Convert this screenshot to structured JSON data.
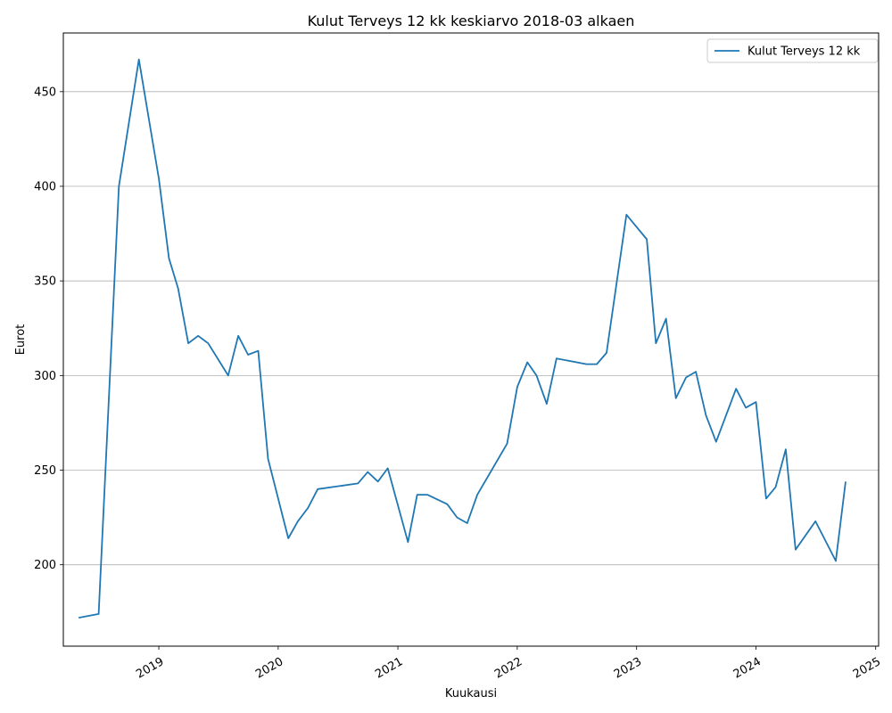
{
  "chart_data": {
    "type": "line",
    "title": "Kulut Terveys 12 kk keskiarvo 2018-03 alkaen",
    "xlabel": "Kuukausi",
    "ylabel": "Eurot",
    "legend_position": "top-right",
    "grid": "horizontal",
    "line_color": "#1f77b4",
    "x_tick_labels": [
      "2019",
      "2020",
      "2021",
      "2022",
      "2023",
      "2024",
      "2025"
    ],
    "y_tick_labels": [
      "200",
      "250",
      "300",
      "350",
      "400",
      "450"
    ],
    "x_range": [
      "2018-03-15",
      "2025-01-10"
    ],
    "ylim": [
      157,
      481
    ],
    "series": [
      {
        "name": "Kulut Terveys 12 kk",
        "points": [
          [
            "2018-05-01",
            172
          ],
          [
            "2018-07-01",
            174
          ],
          [
            "2018-09-01",
            400
          ],
          [
            "2018-11-01",
            467
          ],
          [
            "2019-01-01",
            404
          ],
          [
            "2019-02-01",
            362
          ],
          [
            "2019-03-01",
            346
          ],
          [
            "2019-04-01",
            317
          ],
          [
            "2019-05-01",
            321
          ],
          [
            "2019-06-01",
            317
          ],
          [
            "2019-08-01",
            300
          ],
          [
            "2019-09-01",
            321
          ],
          [
            "2019-10-01",
            311
          ],
          [
            "2019-11-01",
            313
          ],
          [
            "2019-12-01",
            256
          ],
          [
            "2020-02-01",
            214
          ],
          [
            "2020-03-01",
            223
          ],
          [
            "2020-04-01",
            230
          ],
          [
            "2020-05-01",
            240
          ],
          [
            "2020-09-01",
            243
          ],
          [
            "2020-10-01",
            249
          ],
          [
            "2020-11-01",
            244
          ],
          [
            "2020-12-01",
            251
          ],
          [
            "2021-02-01",
            212
          ],
          [
            "2021-03-01",
            237
          ],
          [
            "2021-04-01",
            237
          ],
          [
            "2021-06-01",
            232
          ],
          [
            "2021-07-01",
            225
          ],
          [
            "2021-08-01",
            222
          ],
          [
            "2021-09-01",
            237
          ],
          [
            "2021-12-01",
            264
          ],
          [
            "2022-01-01",
            294
          ],
          [
            "2022-02-01",
            307
          ],
          [
            "2022-03-01",
            300
          ],
          [
            "2022-04-01",
            285
          ],
          [
            "2022-05-01",
            309
          ],
          [
            "2022-08-01",
            306
          ],
          [
            "2022-09-01",
            306
          ],
          [
            "2022-10-01",
            312
          ],
          [
            "2022-12-01",
            385
          ],
          [
            "2023-02-01",
            372
          ],
          [
            "2023-03-01",
            317
          ],
          [
            "2023-04-01",
            330
          ],
          [
            "2023-05-01",
            288
          ],
          [
            "2023-06-01",
            299
          ],
          [
            "2023-07-01",
            302
          ],
          [
            "2023-08-01",
            279
          ],
          [
            "2023-09-01",
            265
          ],
          [
            "2023-11-01",
            293
          ],
          [
            "2023-12-01",
            283
          ],
          [
            "2024-01-01",
            286
          ],
          [
            "2024-02-01",
            235
          ],
          [
            "2024-03-01",
            241
          ],
          [
            "2024-04-01",
            261
          ],
          [
            "2024-05-01",
            208
          ],
          [
            "2024-07-01",
            223
          ],
          [
            "2024-09-01",
            202
          ],
          [
            "2024-10-01",
            244
          ]
        ]
      }
    ]
  }
}
